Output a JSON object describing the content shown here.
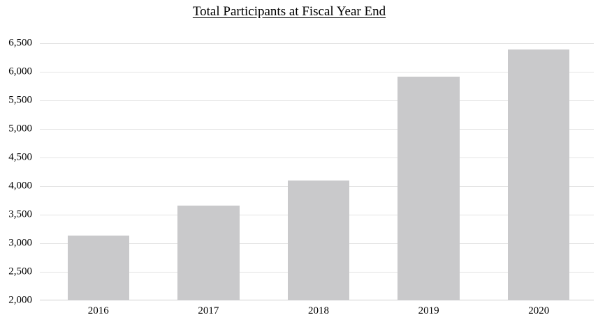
{
  "chart_data": {
    "type": "bar",
    "title": "Total Participants at Fiscal Year End",
    "categories": [
      "2016",
      "2017",
      "2018",
      "2019",
      "2020"
    ],
    "values": [
      3140,
      3660,
      4100,
      5920,
      6390
    ],
    "xlabel": "",
    "ylabel": "",
    "ylim": [
      2000,
      6500
    ],
    "ytick_step": 500,
    "ytick_labels": [
      "2,000",
      "2,500",
      "3,000",
      "3,500",
      "4,000",
      "4,500",
      "5,000",
      "5,500",
      "6,000",
      "6,500"
    ],
    "grid": true,
    "legend": false,
    "layout": {
      "bar_width_fraction": 0.56
    },
    "colors": {
      "bar": "#c9c9cb",
      "gridline": "#e3e3e3",
      "baseline": "#cfcfcf",
      "text": "#000000",
      "background": "#ffffff"
    }
  }
}
